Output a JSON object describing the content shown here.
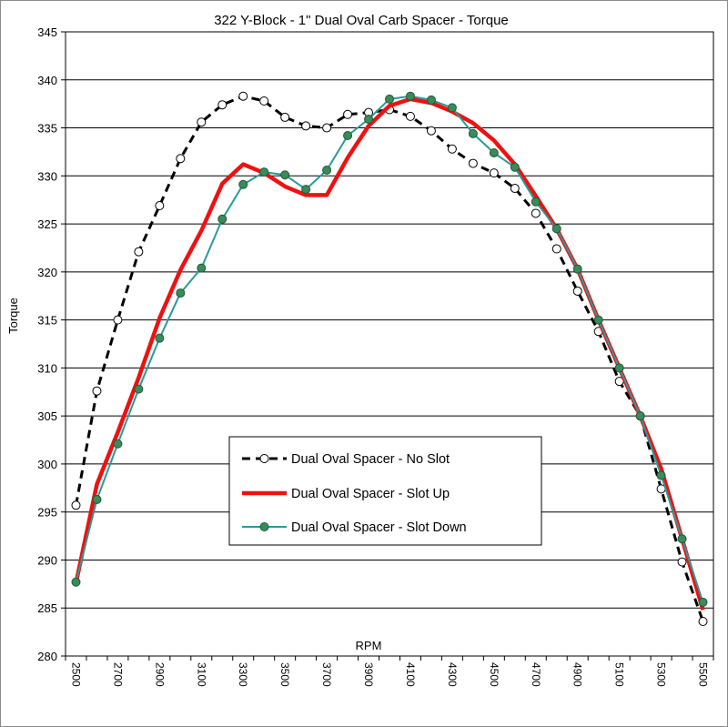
{
  "chart_data": {
    "type": "line",
    "title": "322 Y-Block - 1\" Dual Oval Carb Spacer - Torque",
    "xlabel": "RPM",
    "ylabel": "Torque",
    "ylim": [
      280,
      345
    ],
    "yticks": [
      280,
      285,
      290,
      295,
      300,
      305,
      310,
      315,
      320,
      325,
      330,
      335,
      340,
      345
    ],
    "xticks": [
      "2500",
      "2700",
      "2900",
      "3100",
      "3300",
      "3500",
      "3700",
      "3900",
      "4100",
      "4300",
      "4500",
      "4700",
      "4900",
      "5100",
      "5300",
      "5500"
    ],
    "x": [
      2500,
      2600,
      2700,
      2800,
      2900,
      3000,
      3100,
      3200,
      3300,
      3400,
      3500,
      3600,
      3700,
      3800,
      3900,
      4000,
      4100,
      4200,
      4300,
      4400,
      4500,
      4600,
      4700,
      4800,
      4900,
      5000,
      5100,
      5200,
      5300,
      5400,
      5500
    ],
    "grid": "horizontal",
    "legend_position": "center-bottom",
    "series": [
      {
        "name": "Dual Oval Spacer - No Slot",
        "style": "dashed-black-open-circles",
        "color": "#000000",
        "values": [
          295.7,
          307.6,
          315.0,
          322.1,
          326.9,
          331.8,
          335.6,
          337.4,
          338.3,
          337.8,
          336.1,
          335.2,
          335.0,
          336.4,
          336.6,
          336.9,
          336.2,
          334.7,
          332.8,
          331.3,
          330.3,
          328.7,
          326.1,
          322.4,
          318.0,
          313.8,
          308.6,
          305.0,
          297.4,
          289.8,
          283.6
        ]
      },
      {
        "name": "Dual Oval Spacer - Slot Up",
        "style": "thick-red-line",
        "color": "#ee1111",
        "values": [
          287.6,
          297.9,
          303.3,
          309.0,
          315.2,
          320.2,
          324.3,
          329.2,
          331.2,
          330.3,
          328.9,
          328.0,
          328.0,
          331.9,
          335.2,
          337.3,
          338.0,
          337.6,
          336.7,
          335.5,
          333.7,
          331.2,
          327.9,
          324.5,
          320.3,
          315.0,
          310.0,
          305.0,
          299.5,
          292.2,
          284.8
        ]
      },
      {
        "name": "Dual Oval Spacer - Slot Down",
        "style": "teal-line-green-dots",
        "color": "#2a9a9a",
        "marker_color": "#3a8a5a",
        "values": [
          287.7,
          296.3,
          302.1,
          307.8,
          313.1,
          317.8,
          320.4,
          325.5,
          329.1,
          330.4,
          330.1,
          328.6,
          330.6,
          334.2,
          335.9,
          338.0,
          338.3,
          337.9,
          337.1,
          334.4,
          332.4,
          330.9,
          327.3,
          324.5,
          320.3,
          315.0,
          310.0,
          305.0,
          298.8,
          292.2,
          285.6
        ]
      }
    ]
  }
}
